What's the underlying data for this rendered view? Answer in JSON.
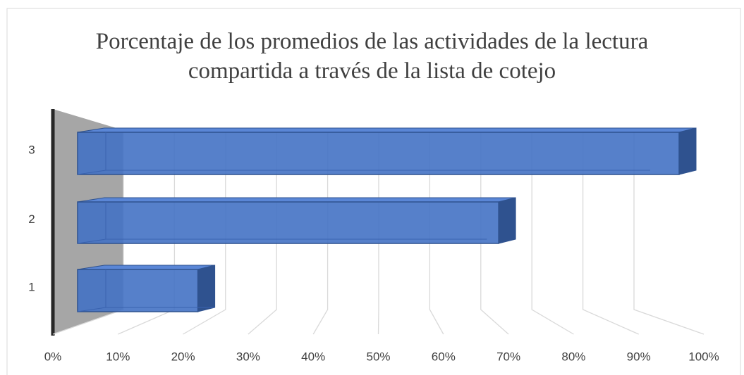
{
  "chart_data": {
    "type": "bar3d",
    "orientation": "horizontal",
    "title": "Porcentaje de los promedios de las actividades de la lectura compartida a través de la lista de cotejo",
    "categories": [
      "1",
      "2",
      "3"
    ],
    "values": [
      20,
      70,
      100
    ],
    "color": "#4472c4",
    "xlim": [
      0,
      100
    ],
    "xticks": [
      {
        "value": 0,
        "label": "0%"
      },
      {
        "value": 10,
        "label": "10%"
      },
      {
        "value": 20,
        "label": "20%"
      },
      {
        "value": 30,
        "label": "30%"
      },
      {
        "value": 40,
        "label": "40%"
      },
      {
        "value": 50,
        "label": "50%"
      },
      {
        "value": 60,
        "label": "60%"
      },
      {
        "value": 70,
        "label": "70%"
      },
      {
        "value": 80,
        "label": "80%"
      },
      {
        "value": 90,
        "label": "90%"
      },
      {
        "value": 100,
        "label": "100%"
      }
    ],
    "grid": true
  }
}
